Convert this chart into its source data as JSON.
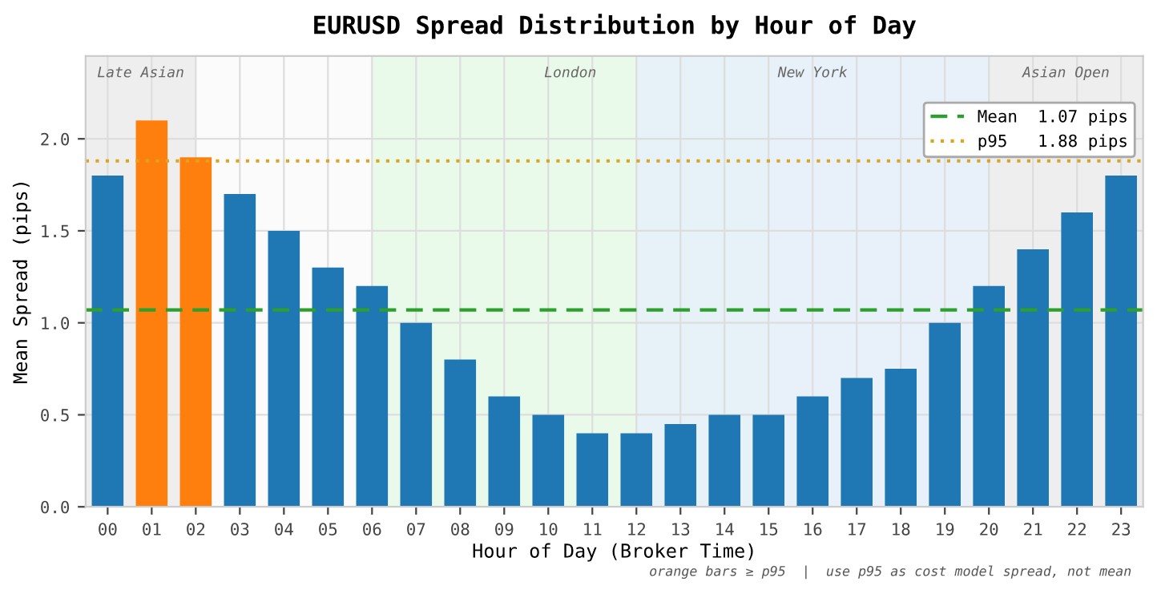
{
  "chart_data": {
    "type": "bar",
    "title": "EURUSD Spread Distribution by Hour of Day",
    "xlabel": "Hour of Day (Broker Time)",
    "ylabel": "Mean Spread (pips)",
    "x": [
      0,
      1,
      2,
      3,
      4,
      5,
      6,
      7,
      8,
      9,
      10,
      11,
      12,
      13,
      14,
      15,
      16,
      17,
      18,
      19,
      20,
      21,
      22,
      23
    ],
    "values": [
      1.8,
      2.1,
      1.9,
      1.7,
      1.5,
      1.3,
      1.2,
      1.0,
      0.8,
      0.6,
      0.5,
      0.4,
      0.4,
      0.45,
      0.5,
      0.5,
      0.6,
      0.7,
      0.75,
      1.0,
      1.2,
      1.4,
      1.6,
      1.8
    ],
    "colors": [
      "#1f77b4",
      "#ff7f0e",
      "#ff7f0e",
      "#1f77b4",
      "#1f77b4",
      "#1f77b4",
      "#1f77b4",
      "#1f77b4",
      "#1f77b4",
      "#1f77b4",
      "#1f77b4",
      "#1f77b4",
      "#1f77b4",
      "#1f77b4",
      "#1f77b4",
      "#1f77b4",
      "#1f77b4",
      "#1f77b4",
      "#1f77b4",
      "#1f77b4",
      "#1f77b4",
      "#1f77b4",
      "#1f77b4",
      "#1f77b4"
    ],
    "xlim": [
      -0.5,
      23.5
    ],
    "xticks": [
      {
        "value": 0,
        "label": "00"
      },
      {
        "value": 1,
        "label": "01"
      },
      {
        "value": 2,
        "label": "02"
      },
      {
        "value": 3,
        "label": "03"
      },
      {
        "value": 4,
        "label": "04"
      },
      {
        "value": 5,
        "label": "05"
      },
      {
        "value": 6,
        "label": "06"
      },
      {
        "value": 7,
        "label": "07"
      },
      {
        "value": 8,
        "label": "08"
      },
      {
        "value": 9,
        "label": "09"
      },
      {
        "value": 10,
        "label": "10"
      },
      {
        "value": 11,
        "label": "11"
      },
      {
        "value": 12,
        "label": "12"
      },
      {
        "value": 13,
        "label": "13"
      },
      {
        "value": 14,
        "label": "14"
      },
      {
        "value": 15,
        "label": "15"
      },
      {
        "value": 16,
        "label": "16"
      },
      {
        "value": 17,
        "label": "17"
      },
      {
        "value": 18,
        "label": "18"
      },
      {
        "value": 19,
        "label": "19"
      },
      {
        "value": 20,
        "label": "20"
      },
      {
        "value": 21,
        "label": "21"
      },
      {
        "value": 22,
        "label": "22"
      },
      {
        "value": 23,
        "label": "23"
      }
    ],
    "ylim": [
      0,
      2.45
    ],
    "yticks": [
      {
        "value": 0,
        "label": "0.0"
      },
      {
        "value": 0.5,
        "label": "0.5"
      },
      {
        "value": 1,
        "label": "1.0"
      },
      {
        "value": 1.5,
        "label": "1.5"
      },
      {
        "value": 2,
        "label": "2.0"
      }
    ],
    "ref_lines": [
      {
        "axis": "y",
        "value": 1.07,
        "label": "Mean  1.07 pips",
        "color": "#2ca02c",
        "line_style": "dashed"
      },
      {
        "axis": "y",
        "value": 1.88,
        "label": "p95   1.88 pips",
        "color": "#daa520",
        "line_style": "dotted"
      }
    ],
    "bands": [
      {
        "axis": "x",
        "from": -0.5,
        "to": 2,
        "label": "Late Asian",
        "color": "#ececec"
      },
      {
        "axis": "x",
        "from": 6,
        "to": 15,
        "label": "London",
        "color": "#e8f9e8"
      },
      {
        "axis": "x",
        "from": 12,
        "to": 20,
        "label": "New York",
        "color": "#e6eff9"
      },
      {
        "axis": "x",
        "from": 20,
        "to": 23.5,
        "label": "Asian Open",
        "color": "#ececec"
      }
    ],
    "annotations": [
      "orange bars ≥ p95  |  use p95 as cost model spread, not mean"
    ],
    "grid": true,
    "legend": "top right"
  }
}
